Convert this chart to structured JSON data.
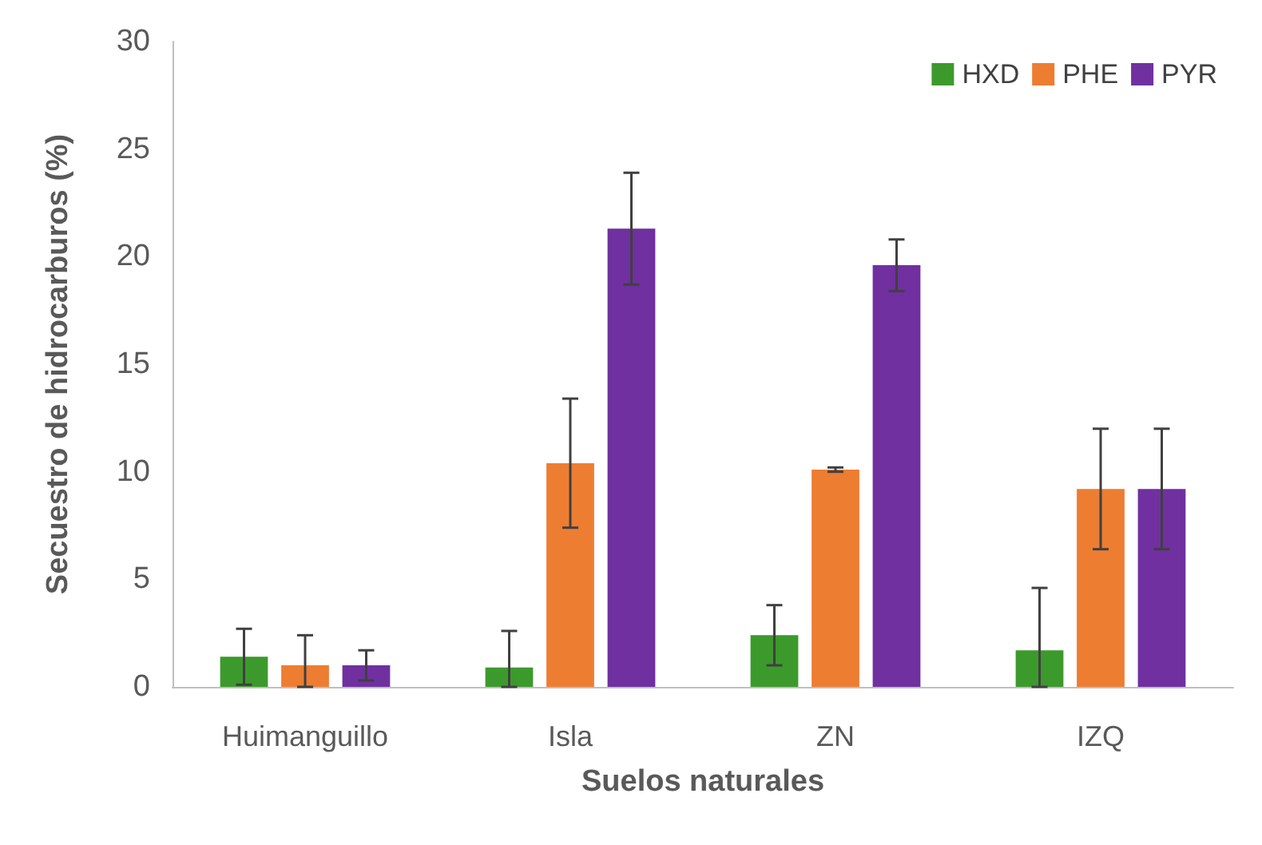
{
  "chart_data": {
    "type": "bar",
    "xlabel": "Suelos naturales",
    "ylabel": "Secuestro de hidrocarburos (%)",
    "categories": [
      "Huimanguillo",
      "Isla",
      "ZN",
      "IZQ"
    ],
    "series": [
      {
        "name": "HXD",
        "color": "#3c9a2c",
        "values": [
          1.4,
          0.9,
          2.4,
          1.7
        ],
        "errors": [
          1.3,
          [
            0,
            2.6
          ],
          1.4,
          [
            0,
            4.6
          ]
        ]
      },
      {
        "name": "PHE",
        "color": "#ed7d31",
        "values": [
          1.0,
          10.4,
          10.1,
          9.2
        ],
        "errors": [
          [
            0,
            2.4
          ],
          3.0,
          0.1,
          2.8
        ]
      },
      {
        "name": "PYR",
        "color": "#7030a0",
        "values": [
          1.0,
          21.3,
          19.6,
          9.2
        ],
        "errors": [
          0.7,
          2.6,
          1.2,
          2.8
        ]
      }
    ],
    "ylim": [
      0,
      30
    ],
    "yticks": [
      0,
      5,
      10,
      15,
      20,
      25,
      30
    ],
    "grid": false,
    "legend": "top right"
  }
}
